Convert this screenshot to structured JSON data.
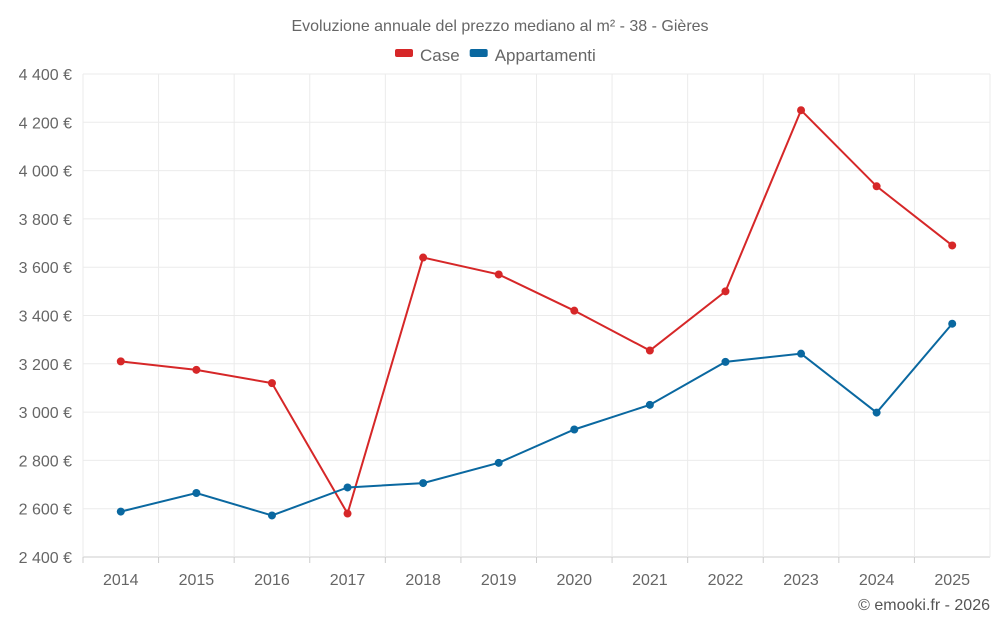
{
  "chart_data": {
    "type": "line",
    "title": "Evoluzione annuale del prezzo mediano al m² - 38 - Gières",
    "xlabel": "",
    "ylabel": "",
    "categories": [
      "2014",
      "2015",
      "2016",
      "2017",
      "2018",
      "2019",
      "2020",
      "2021",
      "2022",
      "2023",
      "2024",
      "2025"
    ],
    "ylim": [
      2400,
      4400
    ],
    "yticks": [
      2400,
      2600,
      2800,
      3000,
      3200,
      3400,
      3600,
      3800,
      4000,
      4200,
      4400
    ],
    "ytick_labels": [
      "2 400 €",
      "2 600 €",
      "2 800 €",
      "3 000 €",
      "3 200 €",
      "3 400 €",
      "3 600 €",
      "3 800 €",
      "4 000 €",
      "4 200 €",
      "4 400 €"
    ],
    "grid": true,
    "legend_position": "top-center",
    "series": [
      {
        "name": "Case",
        "color": "#d62728",
        "values": [
          3210,
          3175,
          3120,
          2580,
          3640,
          3570,
          3420,
          3255,
          3500,
          4250,
          3935,
          3690
        ]
      },
      {
        "name": "Appartamenti",
        "color": "#0a68a0",
        "values": [
          2588,
          2665,
          2572,
          2688,
          2706,
          2790,
          2928,
          3030,
          3208,
          3242,
          2998,
          3366
        ]
      }
    ]
  },
  "footer": {
    "credit": "© emooki.fr - 2026"
  }
}
